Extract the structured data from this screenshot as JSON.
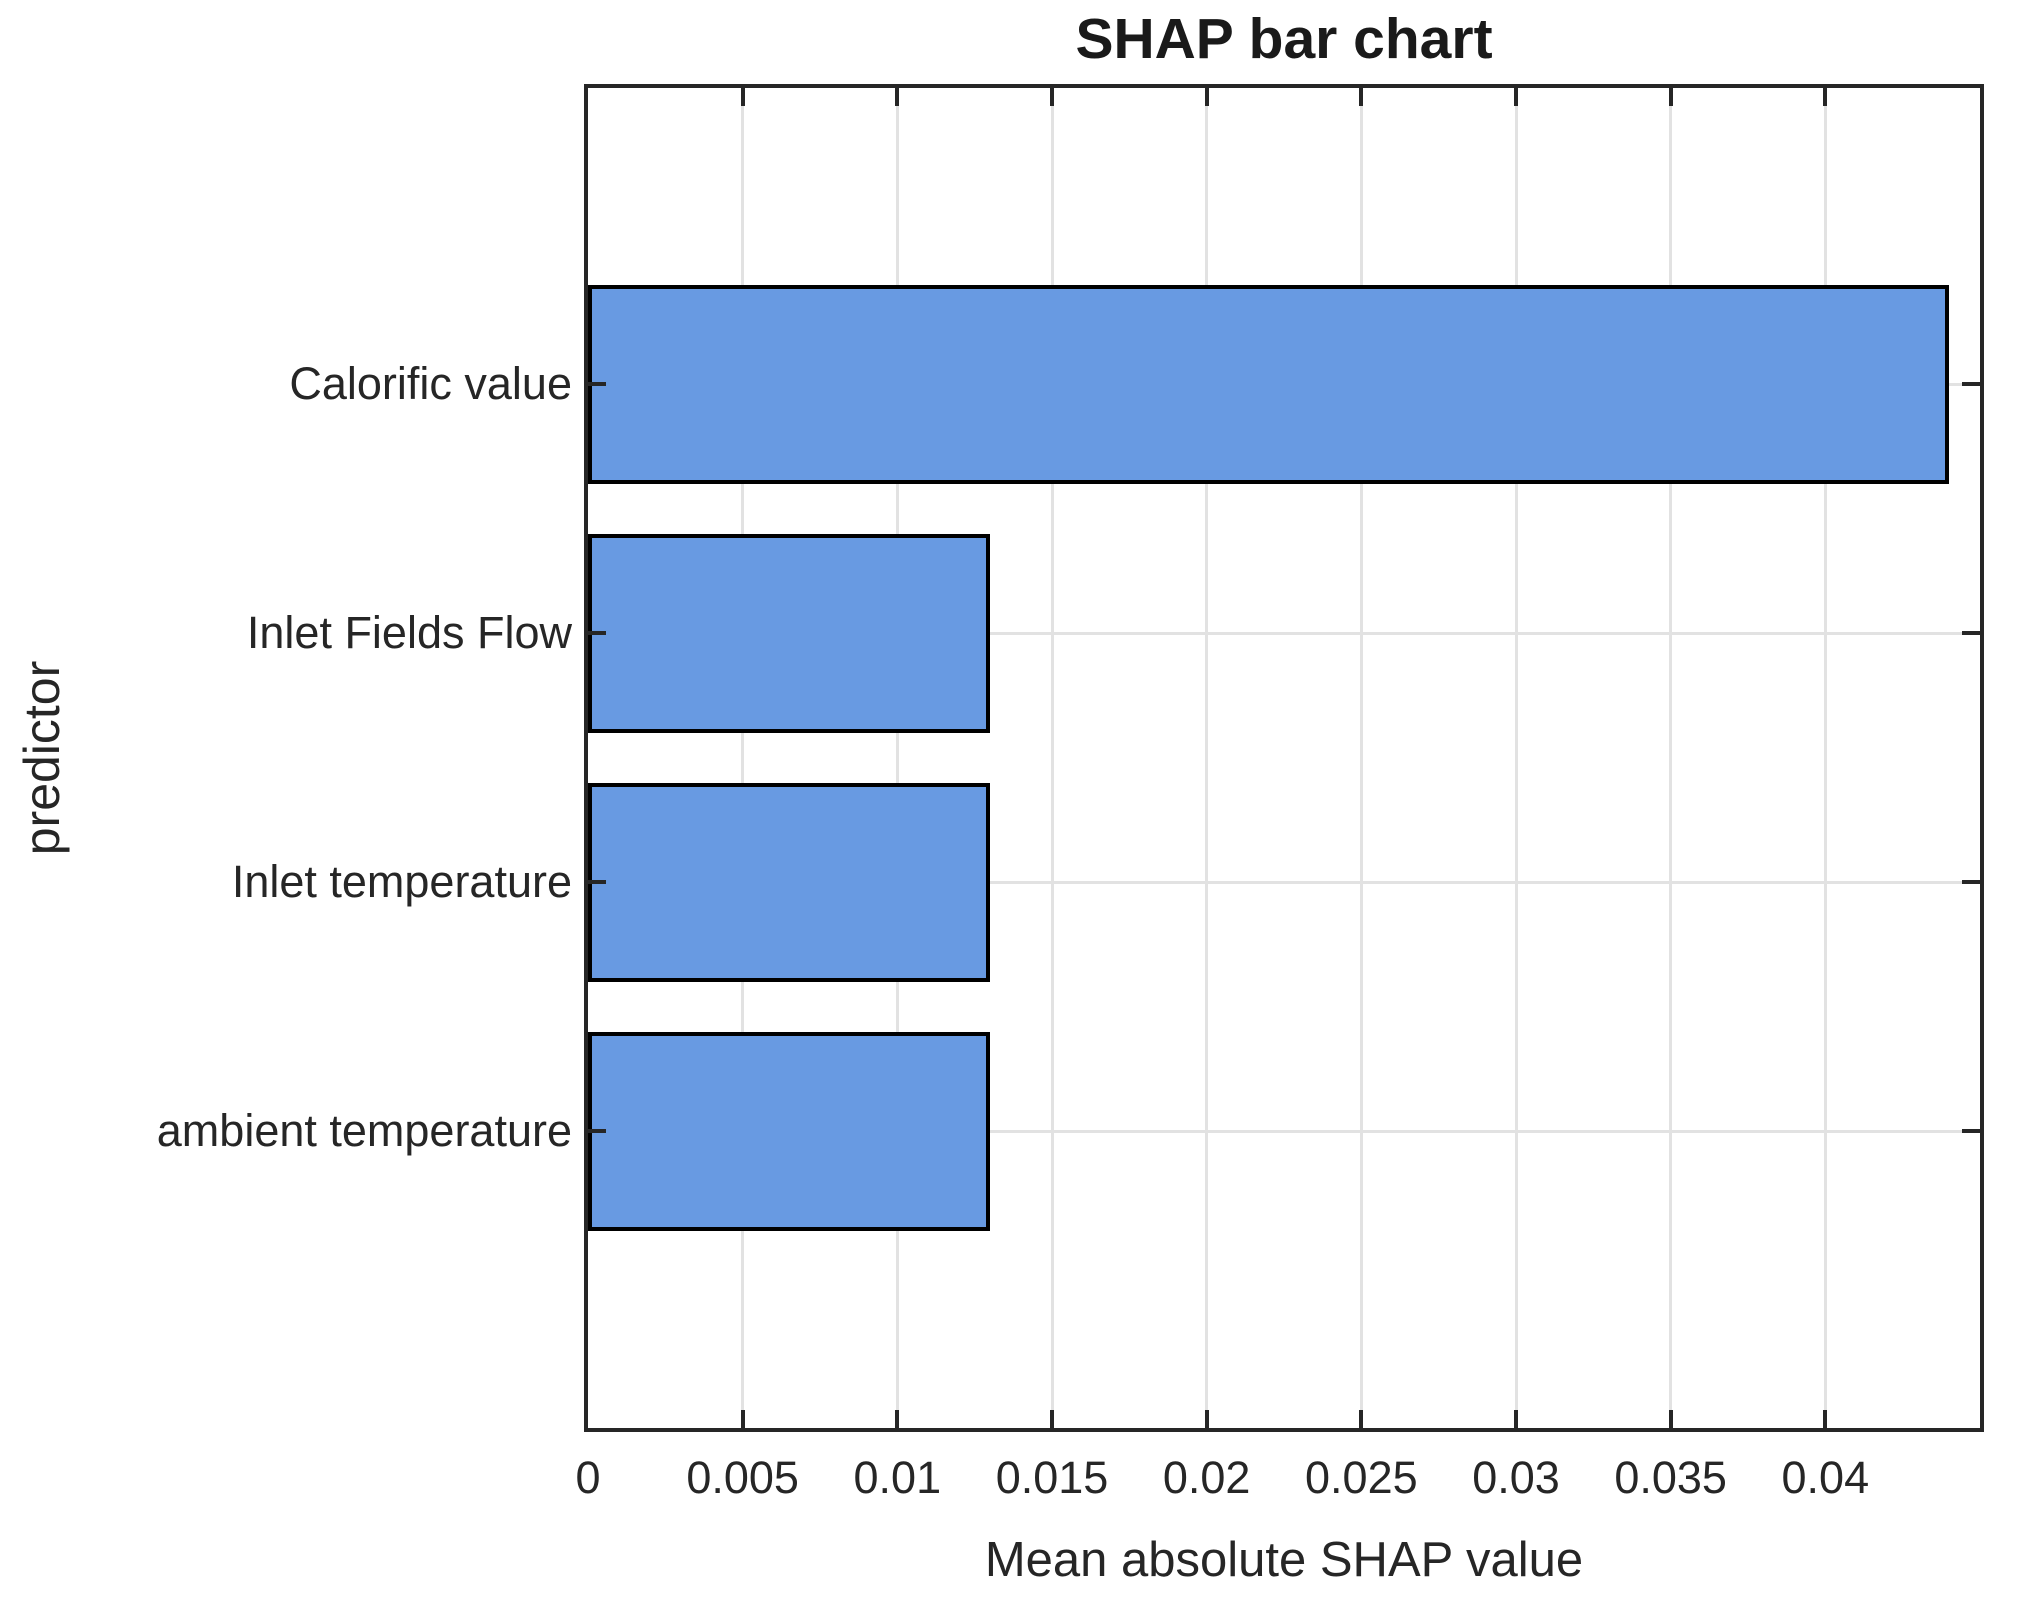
{
  "chart_data": {
    "type": "bar",
    "orientation": "horizontal",
    "title": "SHAP bar chart",
    "xlabel": "Mean absolute SHAP value",
    "ylabel": "predictor",
    "categories": [
      "Calorific value",
      "Inlet Fields Flow",
      "Inlet temperature",
      "ambient temperature"
    ],
    "values": [
      0.044,
      0.013,
      0.013,
      0.013
    ],
    "xlim": [
      0,
      0.045
    ],
    "xticks": [
      0,
      0.005,
      0.01,
      0.015,
      0.02,
      0.025,
      0.03,
      0.035,
      0.04
    ],
    "xtick_labels": [
      "0",
      "0.005",
      "0.01",
      "0.015",
      "0.02",
      "0.025",
      "0.03",
      "0.035",
      "0.04"
    ],
    "grid": true,
    "legend": "none",
    "bar_color": "#689AE2",
    "bar_edge_color": "#000000",
    "axis_color": "#262626",
    "grid_color": "#E2E2E2",
    "text_color": "#262626"
  }
}
